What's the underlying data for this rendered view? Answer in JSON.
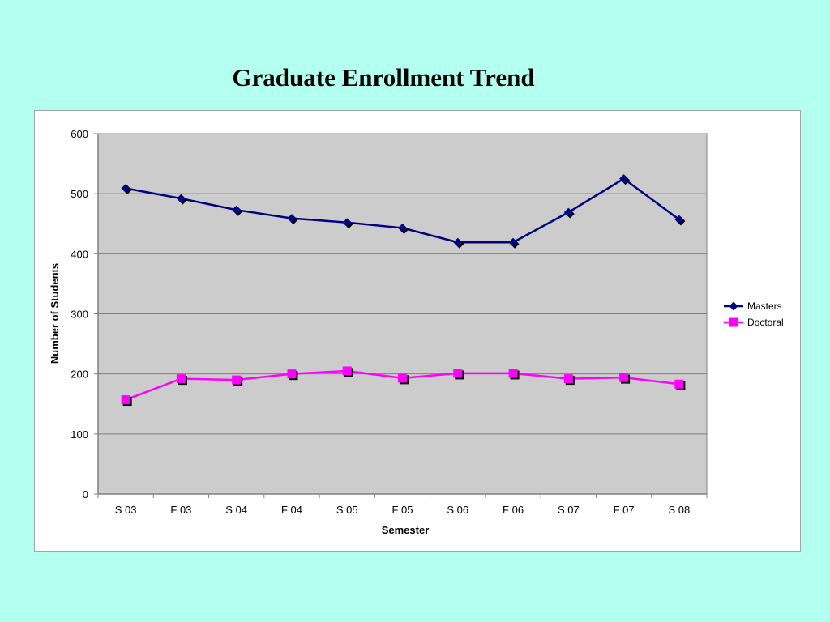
{
  "chart_data": {
    "type": "line",
    "title": "Graduate Enrollment Trend",
    "xlabel": "Semester",
    "ylabel": "Number of Students",
    "categories": [
      "S 03",
      "F 03",
      "S 04",
      "F 04",
      "S 05",
      "F 05",
      "S 06",
      "F 06",
      "S 07",
      "F 07",
      "S 08"
    ],
    "ylim": [
      0,
      600
    ],
    "yticks": [
      0,
      100,
      200,
      300,
      400,
      500,
      600
    ],
    "grid": true,
    "legend_position": "right",
    "plot_background": "#cccccc",
    "series": [
      {
        "name": "Masters",
        "color": "#000080",
        "marker": "diamond",
        "values": [
          509,
          492,
          473,
          459,
          452,
          443,
          419,
          419,
          469,
          525,
          457
        ]
      },
      {
        "name": "Doctoral",
        "color": "#ff00ff",
        "marker": "square",
        "values": [
          157,
          192,
          190,
          200,
          205,
          193,
          201,
          201,
          192,
          194,
          183
        ]
      }
    ]
  }
}
